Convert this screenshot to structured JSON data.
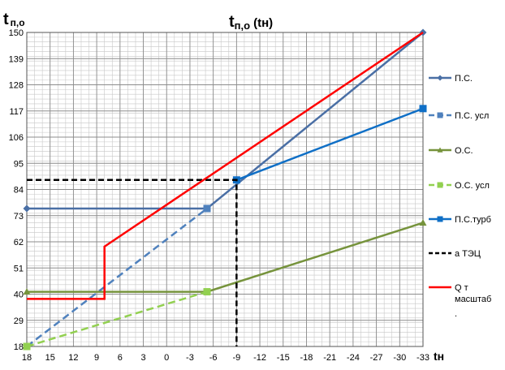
{
  "chart_data": {
    "type": "line",
    "title": "t",
    "title_sub": "п,о",
    "title_paren": "(tн)",
    "ylabel": "t",
    "ylabel_sub": "п,о",
    "xlabel": "tн",
    "x_ticks": [
      18,
      15,
      12,
      9,
      6,
      3,
      0,
      -3,
      -6,
      -9,
      -12,
      -15,
      -18,
      -21,
      -24,
      -27,
      -30,
      -33
    ],
    "y_ticks": [
      18,
      29,
      40,
      51,
      62,
      73,
      84,
      95,
      106,
      117,
      128,
      139,
      150
    ],
    "xlim": [
      18,
      -33
    ],
    "ylim": [
      18,
      150
    ],
    "grid": true,
    "legend_position": "right",
    "series": [
      {
        "name": "П.С.",
        "color": "#4a6fa5",
        "dash": "solid",
        "marker": "diamond",
        "x": [
          18,
          -5.2,
          -33
        ],
        "y": [
          76,
          76,
          150
        ],
        "marker_x": [
          18,
          -33
        ],
        "marker_y": [
          76,
          150
        ]
      },
      {
        "name": "П.С. усл",
        "color": "#4f81bd",
        "dash": "dashed",
        "marker": "square",
        "x": [
          18,
          -5.2
        ],
        "y": [
          18,
          76
        ],
        "marker_x": [
          18,
          -5.2
        ],
        "marker_y": [
          18,
          76
        ]
      },
      {
        "name": "О.С.",
        "color": "#76933c",
        "dash": "solid",
        "marker": "triangle",
        "x": [
          18,
          -5.2,
          -33
        ],
        "y": [
          41,
          41,
          70
        ],
        "marker_x": [
          18,
          -33
        ],
        "marker_y": [
          41,
          70
        ]
      },
      {
        "name": "О.С. усл",
        "color": "#92d050",
        "dash": "dashed",
        "marker": "square",
        "x": [
          18,
          -5.2
        ],
        "y": [
          18,
          41
        ],
        "marker_x": [
          18,
          -5.2
        ],
        "marker_y": [
          18,
          41
        ]
      },
      {
        "name": "П.С.турб",
        "color": "#0f6fc6",
        "dash": "solid",
        "marker": "square",
        "x": [
          -9,
          -33
        ],
        "y": [
          88,
          118
        ],
        "marker_x": [
          -9,
          -33
        ],
        "marker_y": [
          88,
          118
        ]
      },
      {
        "name": "а ТЭЦ",
        "color": "#000000",
        "dash": "dashed",
        "marker": "none",
        "x": [
          18,
          -9,
          -9
        ],
        "y": [
          88,
          88,
          18
        ],
        "marker_x": [],
        "marker_y": []
      },
      {
        "name": "Q т масштаб",
        "color": "#ff0000",
        "dash": "solid",
        "marker": "none",
        "x": [
          18,
          8,
          8,
          8,
          -33
        ],
        "y": [
          38,
          38,
          45,
          60,
          150
        ],
        "marker_x": [],
        "marker_y": []
      }
    ],
    "legend_extra": "."
  }
}
